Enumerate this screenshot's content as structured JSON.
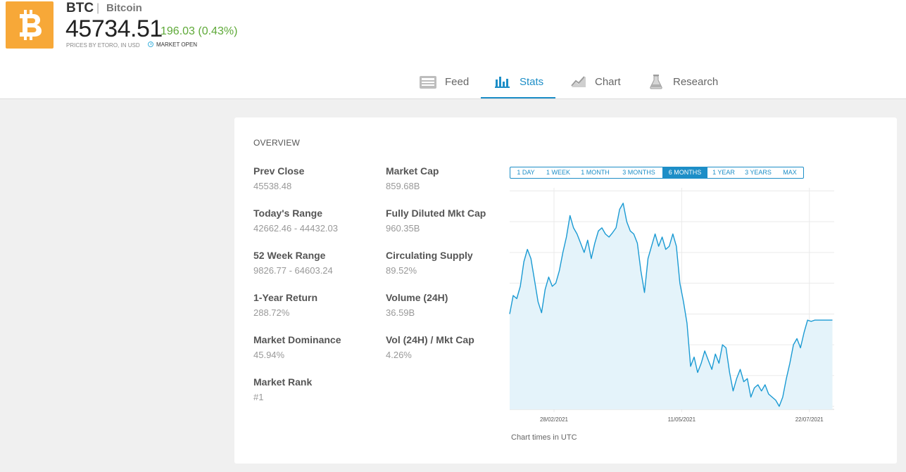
{
  "header": {
    "ticker": "BTC",
    "separator": "|",
    "name": "Bitcoin",
    "price": "45734.51",
    "change": "196.03 (0.43%)",
    "source": "PRICES BY ETORO, IN USD",
    "status": "MARKET OPEN",
    "logo_icon": "bitcoin-icon",
    "colors": {
      "logo_bg": "#f7a838",
      "change": "#5ea938",
      "accent": "#1d8ec7"
    }
  },
  "tabs": [
    {
      "label": "Feed",
      "icon": "feed-icon",
      "active": false
    },
    {
      "label": "Stats",
      "icon": "stats-icon",
      "active": true
    },
    {
      "label": "Chart",
      "icon": "chart-icon",
      "active": false
    },
    {
      "label": "Research",
      "icon": "flask-icon",
      "active": false
    }
  ],
  "overview": {
    "title": "OVERVIEW",
    "left": [
      {
        "label": "Prev Close",
        "value": "45538.48"
      },
      {
        "label": "Today's Range",
        "value": "42662.46 - 44432.03"
      },
      {
        "label": "52 Week Range",
        "value": "9826.77 - 64603.24"
      },
      {
        "label": "1-Year Return",
        "value": "288.72%"
      },
      {
        "label": "Market Dominance",
        "value": "45.94%"
      },
      {
        "label": "Market Rank",
        "value": "#1"
      }
    ],
    "right": [
      {
        "label": "Market Cap",
        "value": "859.68B"
      },
      {
        "label": "Fully Diluted Mkt Cap",
        "value": "960.35B"
      },
      {
        "label": "Circulating Supply",
        "value": "89.52%"
      },
      {
        "label": "Volume (24H)",
        "value": "36.59B"
      },
      {
        "label": "Vol (24H) / Mkt Cap",
        "value": "4.26%"
      }
    ]
  },
  "ranges": [
    {
      "label": "1 DAY",
      "active": false
    },
    {
      "label": "1 WEEK",
      "active": false
    },
    {
      "label": "1 MONTH",
      "active": false
    },
    {
      "label": "3 MONTHS",
      "active": false
    },
    {
      "label": "6 MONTHS",
      "active": true
    },
    {
      "label": "1 YEAR",
      "active": false
    },
    {
      "label": "3 YEARS",
      "active": false
    },
    {
      "label": "MAX",
      "active": false
    }
  ],
  "chart_note": "Chart times in UTC",
  "chart_data": {
    "type": "area",
    "title": "",
    "xlabel": "",
    "ylabel": "",
    "ylim": [
      29500,
      65500
    ],
    "y_ticks": [
      "65000.00",
      "60000.00",
      "55000.00",
      "50000.00",
      "45000.00",
      "40000.00",
      "35000.00",
      "30000.00"
    ],
    "y_tick_values": [
      65000,
      60000,
      55000,
      50000,
      45000,
      40000,
      35000,
      30000
    ],
    "x_ticks": [
      "28/02/2021",
      "11/05/2021",
      "22/07/2021"
    ],
    "x_tick_days": [
      25,
      97,
      169
    ],
    "grid": true,
    "series": [
      {
        "x_days": [
          0,
          2,
          4,
          6,
          8,
          10,
          12,
          14,
          16,
          18,
          20,
          22,
          24,
          26,
          28,
          30,
          32,
          34,
          36,
          38,
          40,
          42,
          44,
          46,
          48,
          50,
          52,
          54,
          56,
          58,
          60,
          62,
          64,
          66,
          68,
          70,
          72,
          74,
          76,
          78,
          80,
          82,
          84,
          86,
          88,
          90,
          92,
          94,
          96,
          98,
          100,
          102,
          104,
          106,
          108,
          110,
          112,
          114,
          116,
          118,
          120,
          122,
          124,
          126,
          128,
          130,
          132,
          134,
          136,
          138,
          140,
          142,
          144,
          146,
          148,
          150,
          152,
          154,
          156,
          158,
          160,
          162,
          164,
          166,
          168,
          170,
          172,
          174,
          176,
          178,
          180,
          182
        ],
        "values": [
          45000,
          48000,
          47500,
          49500,
          53500,
          55500,
          54000,
          50500,
          47000,
          45200,
          49000,
          51000,
          49500,
          50000,
          52000,
          55000,
          57500,
          61000,
          59000,
          58000,
          56500,
          55000,
          57000,
          54000,
          56500,
          58500,
          59000,
          58000,
          57500,
          58200,
          59000,
          62000,
          63000,
          60000,
          58500,
          58000,
          56500,
          52000,
          48500,
          54000,
          56000,
          58000,
          56000,
          57500,
          55500,
          56000,
          58000,
          56000,
          50000,
          47000,
          43500,
          36500,
          38000,
          35500,
          37000,
          39000,
          37500,
          36000,
          38500,
          37000,
          40000,
          39500,
          35500,
          32500,
          34500,
          36000,
          34000,
          34500,
          31500,
          33000,
          33500,
          32500,
          33500,
          32000,
          31500,
          31000,
          30000,
          31500,
          34500,
          37000,
          40000,
          41000,
          39500,
          42000,
          44000,
          43800,
          44000,
          44000,
          44000,
          44000,
          44000,
          44000
        ]
      }
    ]
  }
}
